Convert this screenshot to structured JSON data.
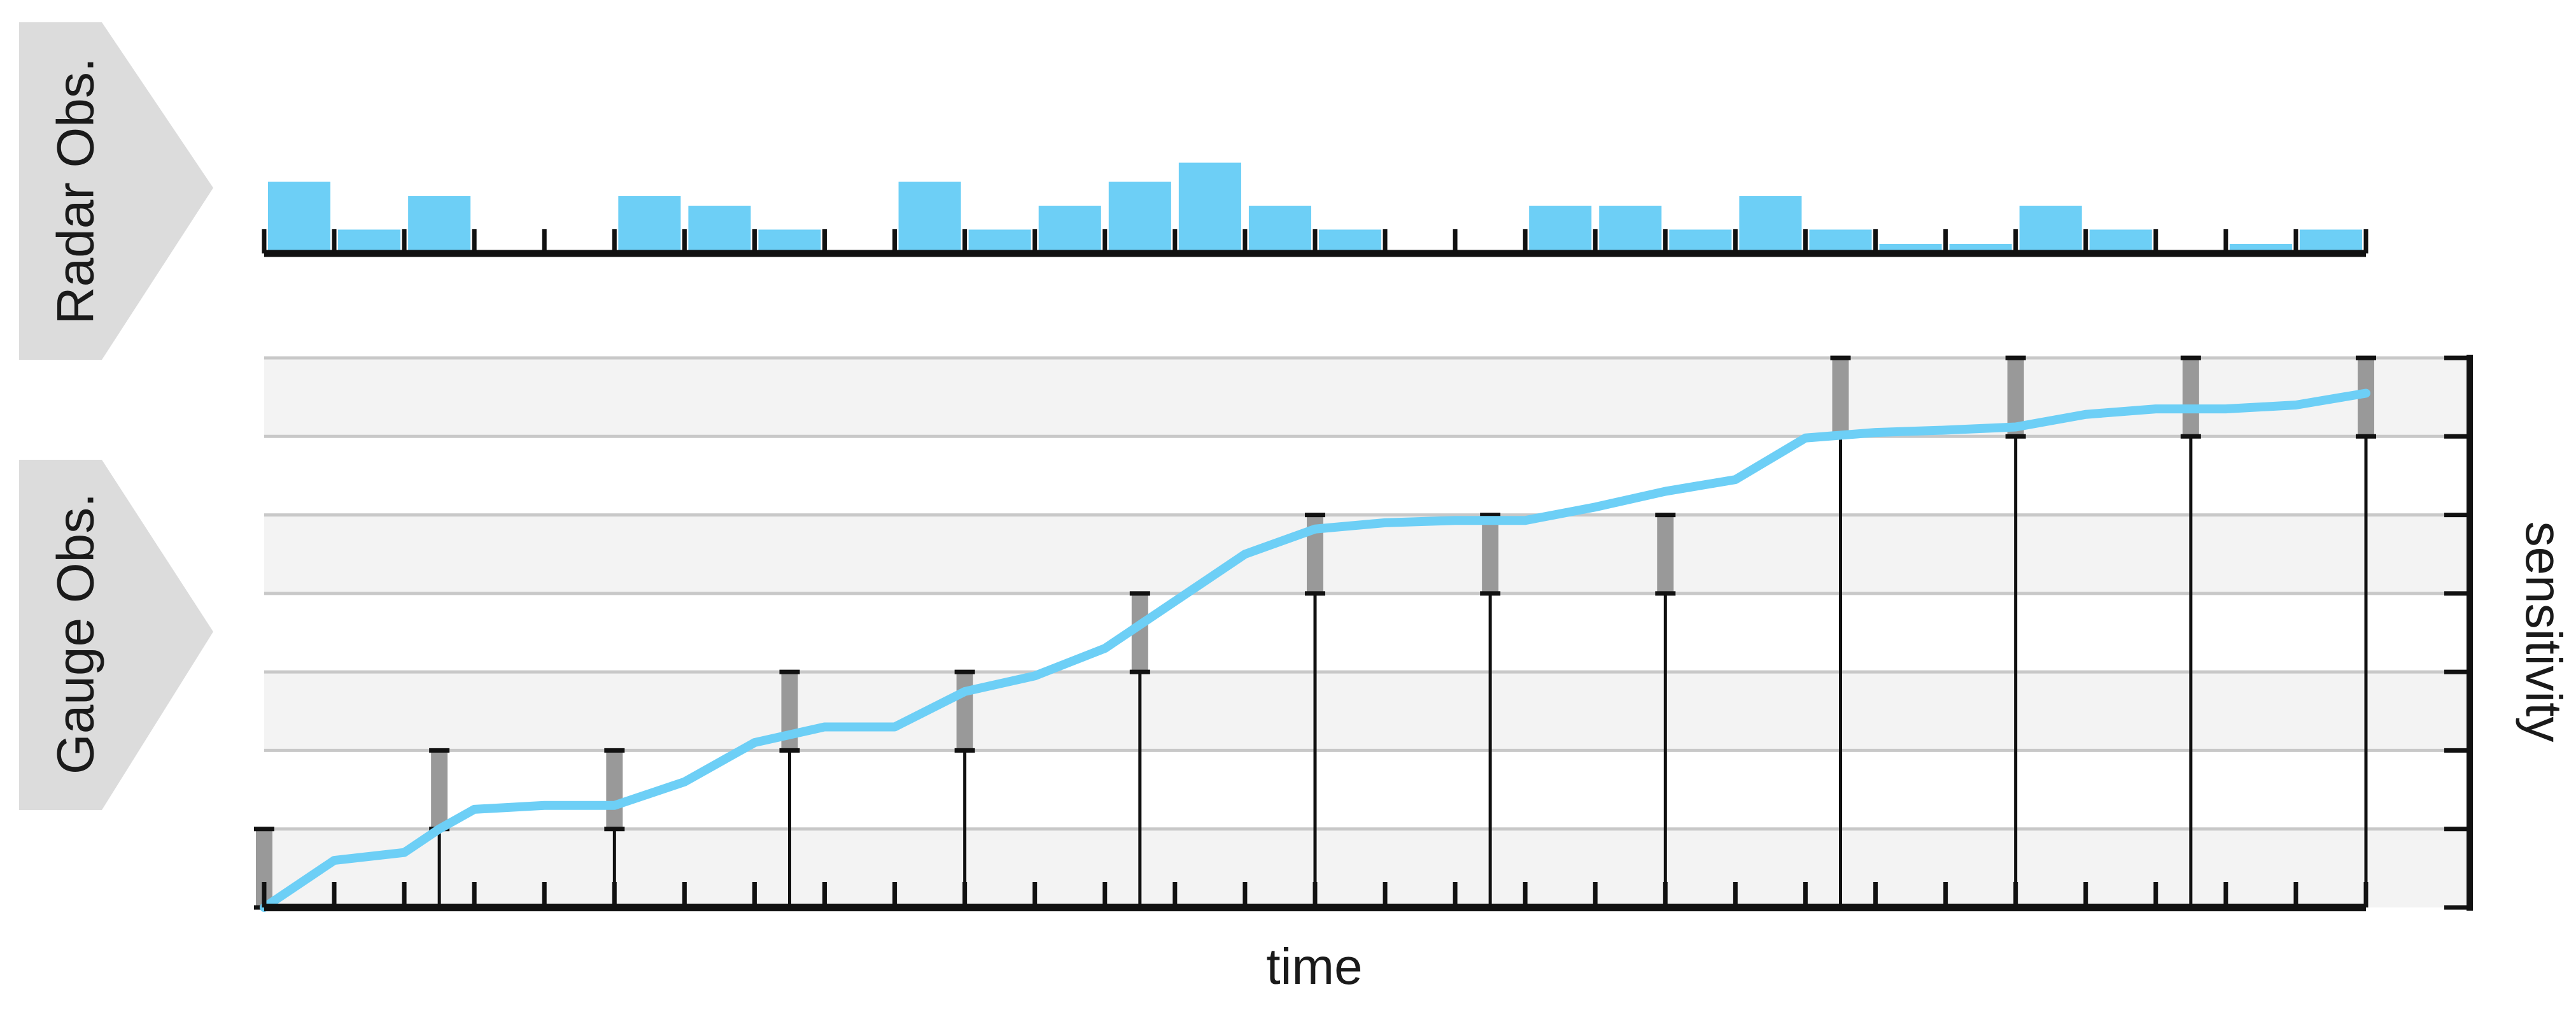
{
  "labels": {
    "radar": "Radar Obs.",
    "gauge": "Gauge Obs.",
    "x_axis": "time",
    "y_axis": "sensitivity"
  },
  "colors": {
    "series": "#6dcff6",
    "error_bar": "#999999",
    "band": "#f3f3f3",
    "grid": "#c8c8c8",
    "axis": "#111111",
    "arrow": "#dcdcdc"
  },
  "chart_data": [
    {
      "type": "bar",
      "panel": "radar",
      "x": [
        0.5,
        1.5,
        2.5,
        3.5,
        4.5,
        5.5,
        6.5,
        7.5,
        8.5,
        9.5,
        10.5,
        11.5,
        12.5,
        13.5,
        14.5,
        15.5,
        16.5,
        17.5,
        18.5,
        19.5,
        20.5,
        21.5,
        22.5,
        23.5,
        24.5,
        25.5,
        26.5,
        27.5,
        28.5,
        29.5
      ],
      "values": [
        0.75,
        0.25,
        0.6,
        0,
        0,
        0.6,
        0.5,
        0.25,
        0,
        0.75,
        0.25,
        0.5,
        0.75,
        0.95,
        0.5,
        0.25,
        0,
        0,
        0.5,
        0.5,
        0.25,
        0.6,
        0.25,
        0.1,
        0.1,
        0.5,
        0.25,
        0,
        0.1,
        0.25
      ],
      "xlim": [
        0,
        30
      ],
      "ylim": [
        0,
        1
      ],
      "ticks": 31
    },
    {
      "type": "line",
      "panel": "gauge",
      "x": [
        0,
        1,
        2,
        2.5,
        3,
        4,
        5,
        6,
        7,
        8,
        9,
        10,
        11,
        12,
        13,
        14,
        15,
        16,
        17,
        18,
        19,
        20,
        21,
        22,
        23,
        24,
        25,
        26,
        27,
        28,
        29,
        30
      ],
      "y": [
        0,
        0.6,
        0.7,
        1,
        1.25,
        1.3,
        1.3,
        1.6,
        2.1,
        2.3,
        2.3,
        2.75,
        2.95,
        3.3,
        3.9,
        4.5,
        4.82,
        4.9,
        4.93,
        4.93,
        5.1,
        5.3,
        5.45,
        5.98,
        6.05,
        6.08,
        6.12,
        6.28,
        6.35,
        6.35,
        6.4,
        6.55
      ],
      "gauge_obs": [
        {
          "x": 0,
          "range": [
            1,
            0
          ]
        },
        {
          "x": 2.5,
          "range": [
            2,
            1
          ]
        },
        {
          "x": 5,
          "range": [
            2,
            1
          ]
        },
        {
          "x": 7.5,
          "range": [
            3,
            2
          ]
        },
        {
          "x": 10,
          "range": [
            3,
            2
          ]
        },
        {
          "x": 12.5,
          "range": [
            4,
            3
          ]
        },
        {
          "x": 15,
          "range": [
            5,
            4
          ]
        },
        {
          "x": 17.5,
          "range": [
            5,
            4
          ]
        },
        {
          "x": 20,
          "range": [
            5,
            4
          ]
        },
        {
          "x": 22.5,
          "range": [
            7,
            6
          ]
        },
        {
          "x": 25,
          "range": [
            7,
            6
          ]
        },
        {
          "x": 27.5,
          "range": [
            7,
            6
          ]
        },
        {
          "x": 30,
          "range": [
            7,
            6
          ]
        }
      ],
      "xlim": [
        0,
        30
      ],
      "ylim": [
        0,
        7
      ],
      "bands": [
        [
          0,
          1
        ],
        [
          2,
          3
        ],
        [
          4,
          5
        ],
        [
          6,
          7
        ]
      ]
    }
  ]
}
